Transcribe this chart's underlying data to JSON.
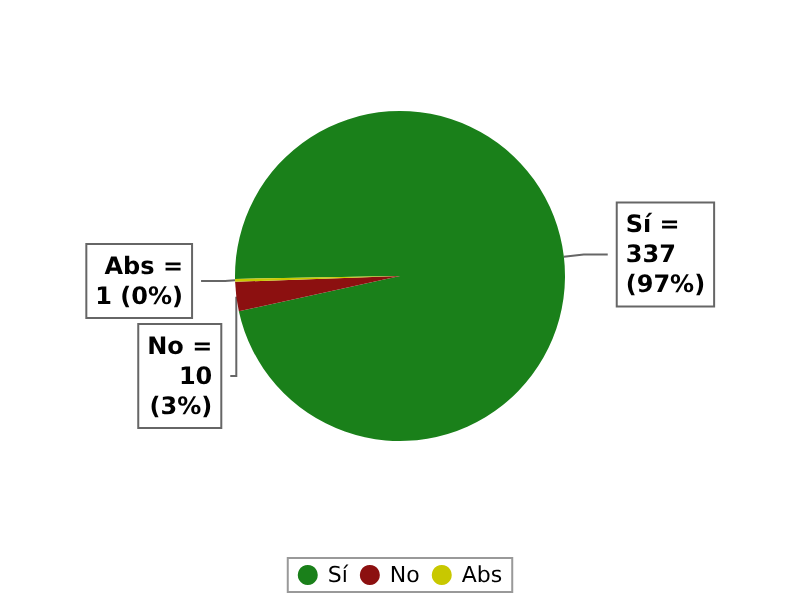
{
  "chart_data": {
    "type": "pie",
    "categories": [
      "Sí",
      "No",
      "Abs"
    ],
    "values": [
      337,
      10,
      1
    ],
    "colors": [
      "#1a801a",
      "#8c1010",
      "#c8c800"
    ],
    "value_labels": [
      "Sí =\n337\n(97%)",
      "No =\n10\n(3%)",
      "Abs =\n1 (0%)"
    ],
    "legend": "bottom"
  }
}
